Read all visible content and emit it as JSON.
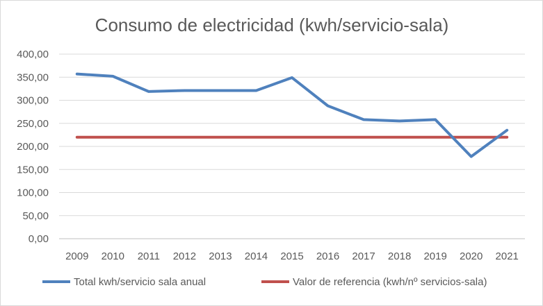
{
  "chart_data": {
    "type": "line",
    "title": "Consumo de electricidad (kwh/servicio-sala)",
    "xlabel": "",
    "ylabel": "",
    "categories": [
      "2009",
      "2010",
      "2011",
      "2012",
      "2013",
      "2014",
      "2015",
      "2016",
      "2017",
      "2018",
      "2019",
      "2020",
      "2021"
    ],
    "ylim": [
      0,
      400
    ],
    "yticks": [
      "0,00",
      "50,00",
      "100,00",
      "150,00",
      "200,00",
      "250,00",
      "300,00",
      "350,00",
      "400,00"
    ],
    "grid": true,
    "legend_position": "bottom",
    "series": [
      {
        "name": "Total kwh/servicio sala anual",
        "color": "#4f81bd",
        "values": [
          357,
          352,
          319,
          321,
          321,
          321,
          349,
          288,
          258,
          255,
          258,
          178,
          235
        ]
      },
      {
        "name": "Valor de referencia (kwh/nº servicios-sala)",
        "color": "#c0504d",
        "values": [
          220,
          220,
          220,
          220,
          220,
          220,
          220,
          220,
          220,
          220,
          220,
          220,
          220
        ]
      }
    ]
  }
}
